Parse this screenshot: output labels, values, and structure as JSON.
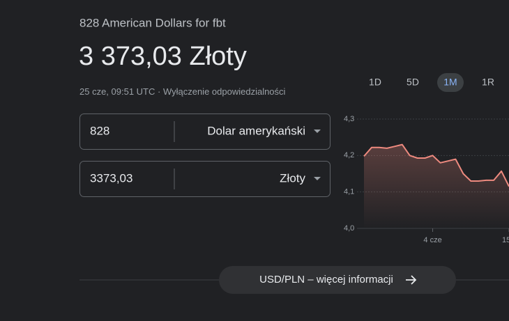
{
  "header": {
    "subtitle": "828 American Dollars for fbt",
    "result": "3 373,03 Złoty",
    "timestamp": "25 cze, 09:51 UTC",
    "disclaimer": "Wyłączenie odpowiedzialności"
  },
  "ranges": [
    "1D",
    "5D",
    "1M",
    "1R"
  ],
  "selected_range": 2,
  "converter": {
    "from": {
      "amount": "828",
      "currency": "Dolar amerykański"
    },
    "to": {
      "amount": "3373,03",
      "currency": "Złoty"
    }
  },
  "chart_data": {
    "type": "line",
    "categories": [
      null,
      null,
      null,
      null,
      null,
      null,
      null,
      null,
      null,
      "4 cze",
      null,
      null,
      null,
      null,
      null,
      null,
      null,
      null,
      null,
      "15"
    ],
    "series": [
      {
        "color": "#ee8a7f",
        "values": [
          4.198,
          4.222,
          4.222,
          4.22,
          4.225,
          4.23,
          4.2,
          4.193,
          4.193,
          4.2,
          4.18,
          4.185,
          4.19,
          4.15,
          4.13,
          4.13,
          4.132,
          4.132,
          4.157,
          4.115
        ]
      }
    ],
    "ylim": [
      4.0,
      4.3
    ],
    "yticks": [
      {
        "value": 4.0,
        "label": "4,0"
      },
      {
        "value": 4.1,
        "label": "4,1"
      },
      {
        "value": 4.2,
        "label": "4,2"
      },
      {
        "value": 4.3,
        "label": "4,3"
      }
    ],
    "grid": true
  },
  "footer": {
    "link": "USD/PLN – więcej informacji"
  }
}
